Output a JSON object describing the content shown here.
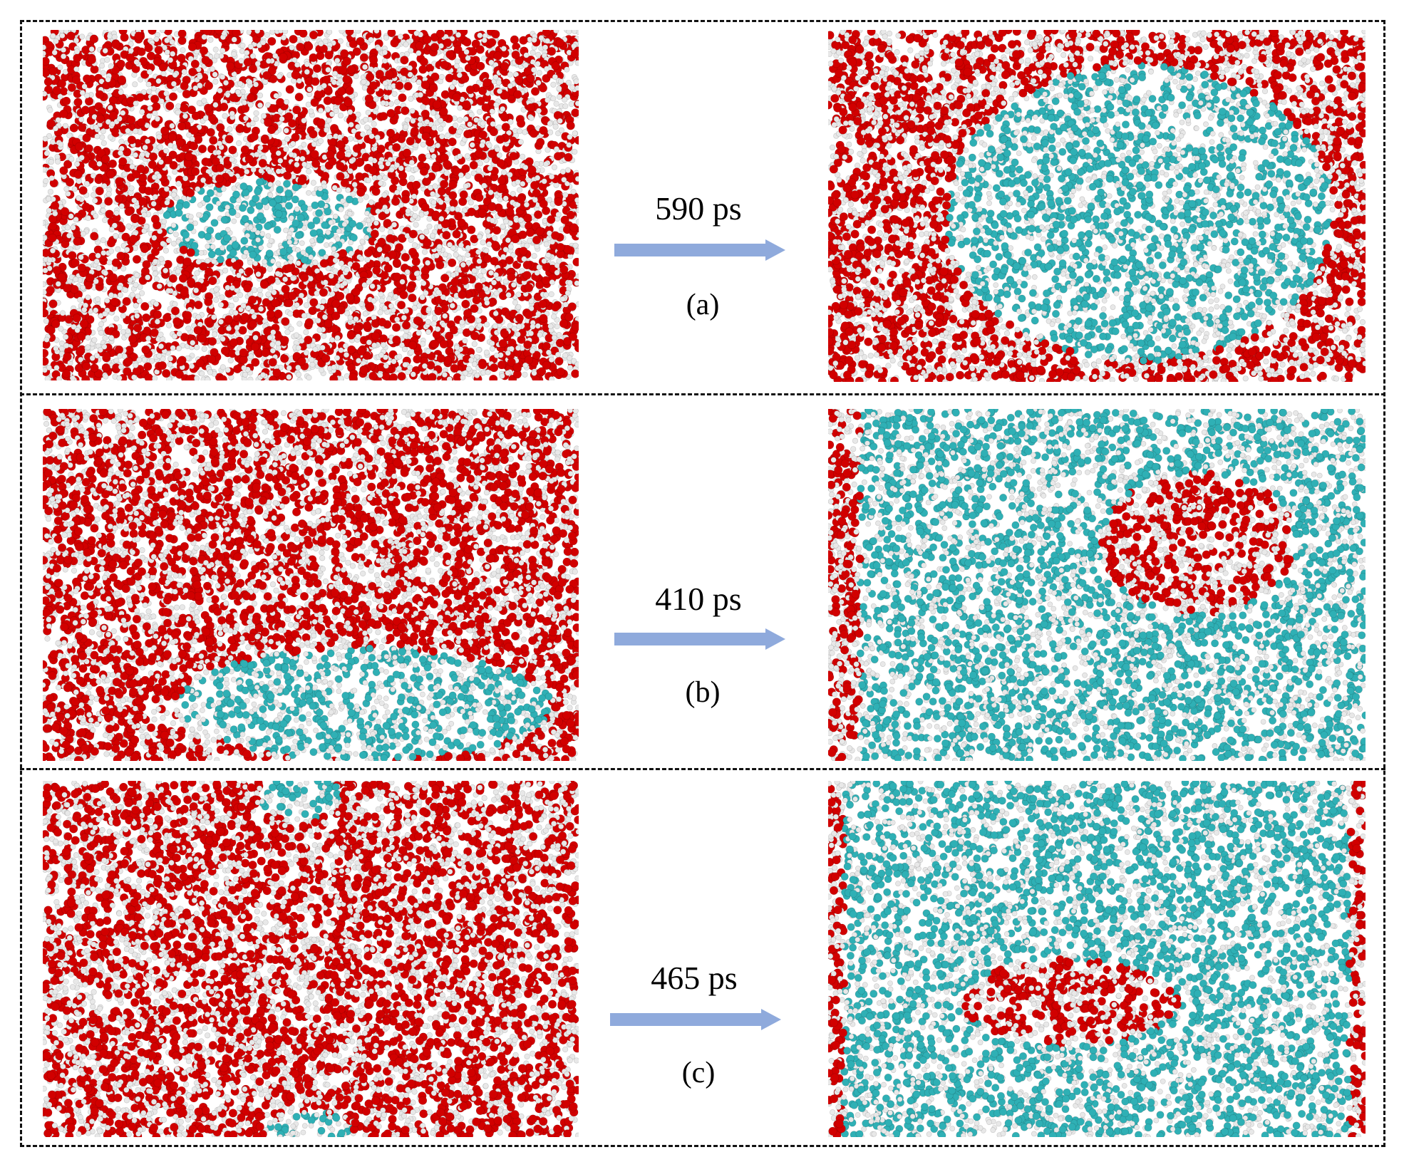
{
  "rows": [
    {
      "time": "590 ps",
      "label": "(a)"
    },
    {
      "time": "410 ps",
      "label": "(b)"
    },
    {
      "time": "465 ps",
      "label": "(c)"
    }
  ],
  "colors": {
    "oxygen": "#d10000",
    "hydrogen": "#e8e8e8",
    "carbon": "#2fb0b5",
    "arrow": "#8faadc",
    "border": "#111111"
  }
}
